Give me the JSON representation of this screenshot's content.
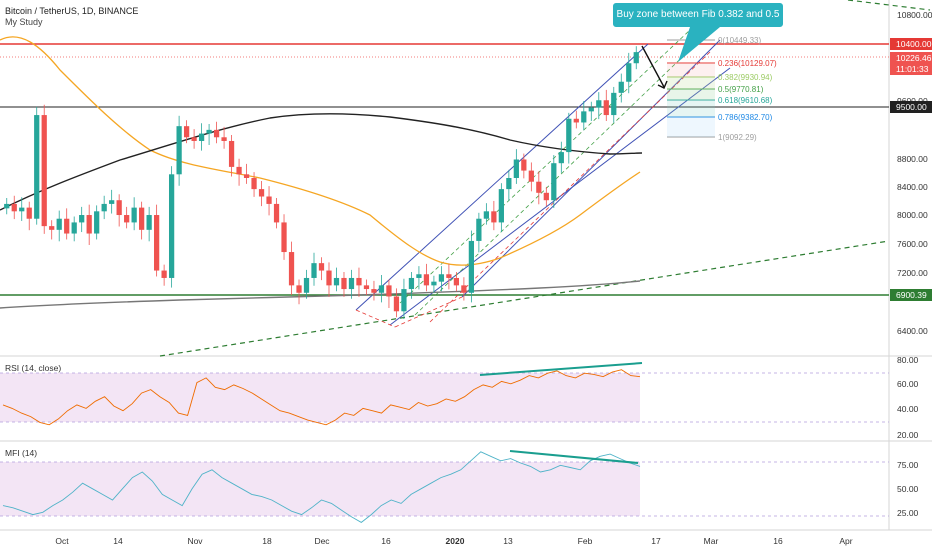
{
  "header": {
    "symbol": "Bitcoin / TetherUS, 1D, BINANCE",
    "study": "My Study"
  },
  "annotation": "Buy zone between Fib 0.382 and 0.5",
  "price_axis": {
    "ticks": [
      "10800.00",
      "9600.00",
      "8800.00",
      "8400.00",
      "8000.00",
      "7600.00",
      "7200.00",
      "6400.00"
    ],
    "badges": [
      {
        "text": "10400.00",
        "color": "#e53935",
        "text_color": "#ffffff"
      },
      {
        "text": "10226.46",
        "color": "#ef5350",
        "text_color": "#ffffff"
      },
      {
        "text": "11:01:33",
        "color": "#ef5350",
        "text_color": "#ffffff"
      },
      {
        "text": "9500.00",
        "color": "#212121",
        "text_color": "#ffffff"
      },
      {
        "text": "6900.39",
        "color": "#2e7d32",
        "text_color": "#ffffff"
      }
    ]
  },
  "fib_levels": [
    {
      "label": "0(10449.33)",
      "color": "#9e9e9e"
    },
    {
      "label": "0.236(10129.07)",
      "color": "#e53935"
    },
    {
      "label": "0.382(9930.94)",
      "color": "#9ccc65"
    },
    {
      "label": "0.5(9770.81)",
      "color": "#43a047"
    },
    {
      "label": "0.618(9610.68)",
      "color": "#26a69a"
    },
    {
      "label": "0.786(9382.70)",
      "color": "#1e88e5"
    },
    {
      "label": "1(9092.29)",
      "color": "#9e9e9e"
    }
  ],
  "x_axis": {
    "labels": [
      "Oct",
      "14",
      "Nov",
      "18",
      "Dec",
      "16",
      "2020",
      "13",
      "Feb",
      "17",
      "Mar",
      "16",
      "Apr"
    ]
  },
  "rsi": {
    "title": "RSI (14, close)",
    "ticks": [
      "80.00",
      "60.00",
      "40.00",
      "20.00"
    ]
  },
  "mfi": {
    "title": "MFI (14)",
    "ticks": [
      "75.00",
      "50.00",
      "25.00"
    ]
  },
  "chart_data": [
    {
      "type": "candlestick",
      "title": "Bitcoin / TetherUS, 1D, BINANCE",
      "ylim": [
        6300,
        11000
      ],
      "horizontal_levels": [
        {
          "value": 10400,
          "color": "#e53935"
        },
        {
          "value": 9500,
          "color": "#212121"
        },
        {
          "value": 6900,
          "color": "#2e7d32"
        }
      ],
      "candles_approx_close": [
        8300,
        8200,
        8250,
        8100,
        9500,
        8000,
        7950,
        8100,
        7900,
        8050,
        8150,
        7900,
        8200,
        8300,
        8350,
        8150,
        8050,
        8250,
        7950,
        8150,
        7400,
        7300,
        8700,
        9350,
        9200,
        9150,
        9250,
        9300,
        9200,
        9150,
        8800,
        8700,
        8650,
        8500,
        8400,
        8300,
        8050,
        7650,
        7200,
        7100,
        7300,
        7500,
        7400,
        7200,
        7300,
        7150,
        7300,
        7200,
        7150,
        7100,
        7200,
        7050,
        6850,
        7150,
        7300,
        7350,
        7200,
        7250,
        7350,
        7300,
        7200,
        7100,
        7800,
        8100,
        8200,
        8050,
        8500,
        8650,
        8900,
        8750,
        8600,
        8450,
        8350,
        8850,
        9000,
        9450,
        9400,
        9550,
        9600,
        9700,
        9500,
        9800,
        9950,
        10200,
        10350
      ]
    },
    {
      "type": "line",
      "title": "RSI (14, close)",
      "ylim": [
        15,
        85
      ],
      "bands": [
        30,
        70
      ],
      "values": [
        45,
        42,
        38,
        35,
        30,
        28,
        33,
        40,
        45,
        42,
        48,
        52,
        44,
        40,
        46,
        55,
        58,
        52,
        47,
        38,
        36,
        64,
        68,
        60,
        58,
        62,
        59,
        55,
        50,
        45,
        40,
        38,
        35,
        32,
        30,
        28,
        32,
        38,
        36,
        42,
        40,
        38,
        45,
        43,
        41,
        47,
        44,
        46,
        50,
        48,
        52,
        58,
        62,
        60,
        65,
        63,
        66,
        70,
        68,
        72,
        74,
        70,
        68,
        72,
        71,
        69,
        73,
        75,
        70,
        69
      ]
    },
    {
      "type": "line",
      "title": "MFI (14)",
      "ylim": [
        10,
        85
      ],
      "bands": [
        20,
        80
      ],
      "values": [
        30,
        28,
        25,
        22,
        24,
        30,
        35,
        42,
        50,
        45,
        40,
        35,
        45,
        55,
        60,
        52,
        40,
        35,
        30,
        45,
        58,
        62,
        55,
        50,
        45,
        40,
        38,
        35,
        30,
        25,
        22,
        28,
        35,
        32,
        26,
        20,
        15,
        22,
        30,
        35,
        32,
        40,
        45,
        50,
        55,
        58,
        62,
        70,
        78,
        74,
        70,
        72,
        68,
        65,
        60,
        62,
        66,
        64,
        62,
        70,
        74,
        76,
        72,
        68,
        65
      ]
    }
  ]
}
